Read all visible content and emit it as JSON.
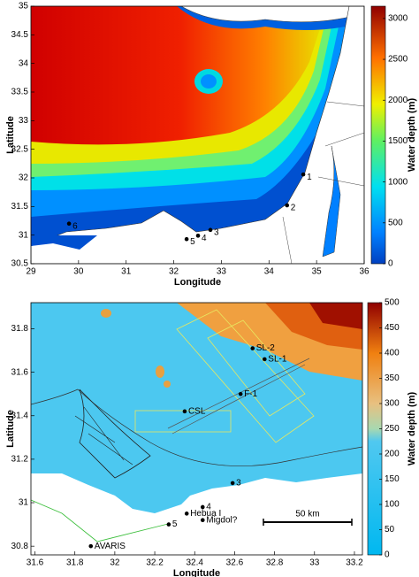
{
  "panels": [
    {
      "xlabel": "Longitude",
      "ylabel": "Latitude",
      "colorbar_label": "Water depth (m)",
      "xlim": [
        29,
        36
      ],
      "ylim": [
        30.5,
        35
      ],
      "xticks": [
        29,
        30,
        31,
        32,
        33,
        34,
        35,
        36
      ],
      "yticks": [
        30.5,
        31,
        31.5,
        32,
        32.5,
        33,
        33.5,
        34,
        34.5,
        35
      ],
      "colorbar_lim": [
        0,
        3150
      ],
      "colorbar_ticks": [
        0,
        500,
        1000,
        1500,
        2000,
        2500,
        3000
      ],
      "sites": [
        {
          "label": "1",
          "lon": 34.72,
          "lat": 32.06
        },
        {
          "label": "2",
          "lon": 34.38,
          "lat": 31.52
        },
        {
          "label": "3",
          "lon": 32.77,
          "lat": 31.09
        },
        {
          "label": "4",
          "lon": 32.51,
          "lat": 30.99
        },
        {
          "label": "5",
          "lon": 32.27,
          "lat": 30.93
        },
        {
          "label": "6",
          "lon": 29.8,
          "lat": 31.2
        }
      ]
    },
    {
      "xlabel": "Longitude",
      "ylabel": "Latitude",
      "colorbar_label": "Water depth (m)",
      "xlim": [
        31.58,
        33.24
      ],
      "ylim": [
        30.76,
        31.92
      ],
      "xticks": [
        31.6,
        31.8,
        32,
        32.2,
        32.4,
        32.6,
        32.8,
        33,
        33.2
      ],
      "yticks": [
        30.8,
        31,
        31.2,
        31.4,
        31.6,
        31.8
      ],
      "colorbar_lim": [
        0,
        500
      ],
      "colorbar_ticks": [
        0,
        50,
        100,
        150,
        200,
        250,
        300,
        350,
        400,
        450,
        500
      ],
      "sites": [
        {
          "label": "SL-2",
          "lon": 32.69,
          "lat": 31.71
        },
        {
          "label": "SL-1",
          "lon": 32.75,
          "lat": 31.66
        },
        {
          "label": "F-1",
          "lon": 32.63,
          "lat": 31.5
        },
        {
          "label": "CSL",
          "lon": 32.35,
          "lat": 31.42
        },
        {
          "label": "3",
          "lon": 32.59,
          "lat": 31.09
        },
        {
          "label": "4",
          "lon": 32.44,
          "lat": 30.98
        },
        {
          "label": "Hebua I",
          "lon": 32.36,
          "lat": 30.95
        },
        {
          "label": "Migdol?",
          "lon": 32.44,
          "lat": 30.92
        },
        {
          "label": "5",
          "lon": 32.27,
          "lat": 30.9
        },
        {
          "label": "AVARIS",
          "lon": 31.88,
          "lat": 30.8
        }
      ]
    }
  ],
  "scale_bar": "50 km"
}
